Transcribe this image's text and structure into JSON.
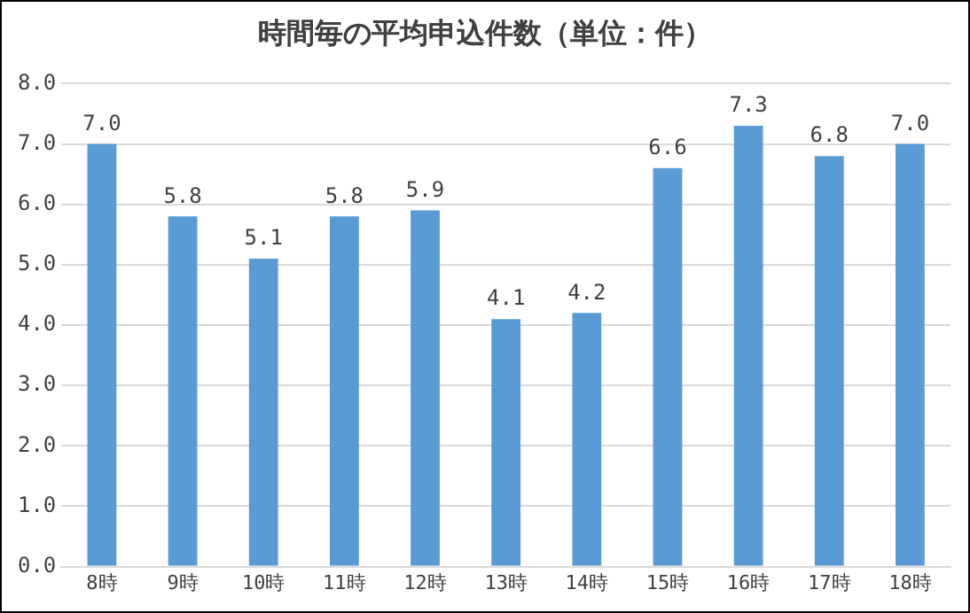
{
  "chart_data": {
    "type": "bar",
    "title": "時間毎の平均申込件数（単位：件）",
    "categories": [
      "8時",
      "9時",
      "10時",
      "11時",
      "12時",
      "13時",
      "14時",
      "15時",
      "16時",
      "17時",
      "18時"
    ],
    "values": [
      7.0,
      5.8,
      5.1,
      5.8,
      5.9,
      4.1,
      4.2,
      6.6,
      7.3,
      6.8,
      7.0
    ],
    "value_labels": [
      "7.0",
      "5.8",
      "5.1",
      "5.8",
      "5.9",
      "4.1",
      "4.2",
      "6.6",
      "7.3",
      "6.8",
      "7.0"
    ],
    "color": "#5b9bd5",
    "ylim": [
      0,
      8
    ],
    "yticks": [
      {
        "value": 0,
        "label": "0.0"
      },
      {
        "value": 1,
        "label": "1.0"
      },
      {
        "value": 2,
        "label": "2.0"
      },
      {
        "value": 3,
        "label": "3.0"
      },
      {
        "value": 4,
        "label": "4.0"
      },
      {
        "value": 5,
        "label": "5.0"
      },
      {
        "value": 6,
        "label": "6.0"
      },
      {
        "value": 7,
        "label": "7.0"
      },
      {
        "value": 8,
        "label": "8.0"
      }
    ],
    "grid": "y"
  }
}
